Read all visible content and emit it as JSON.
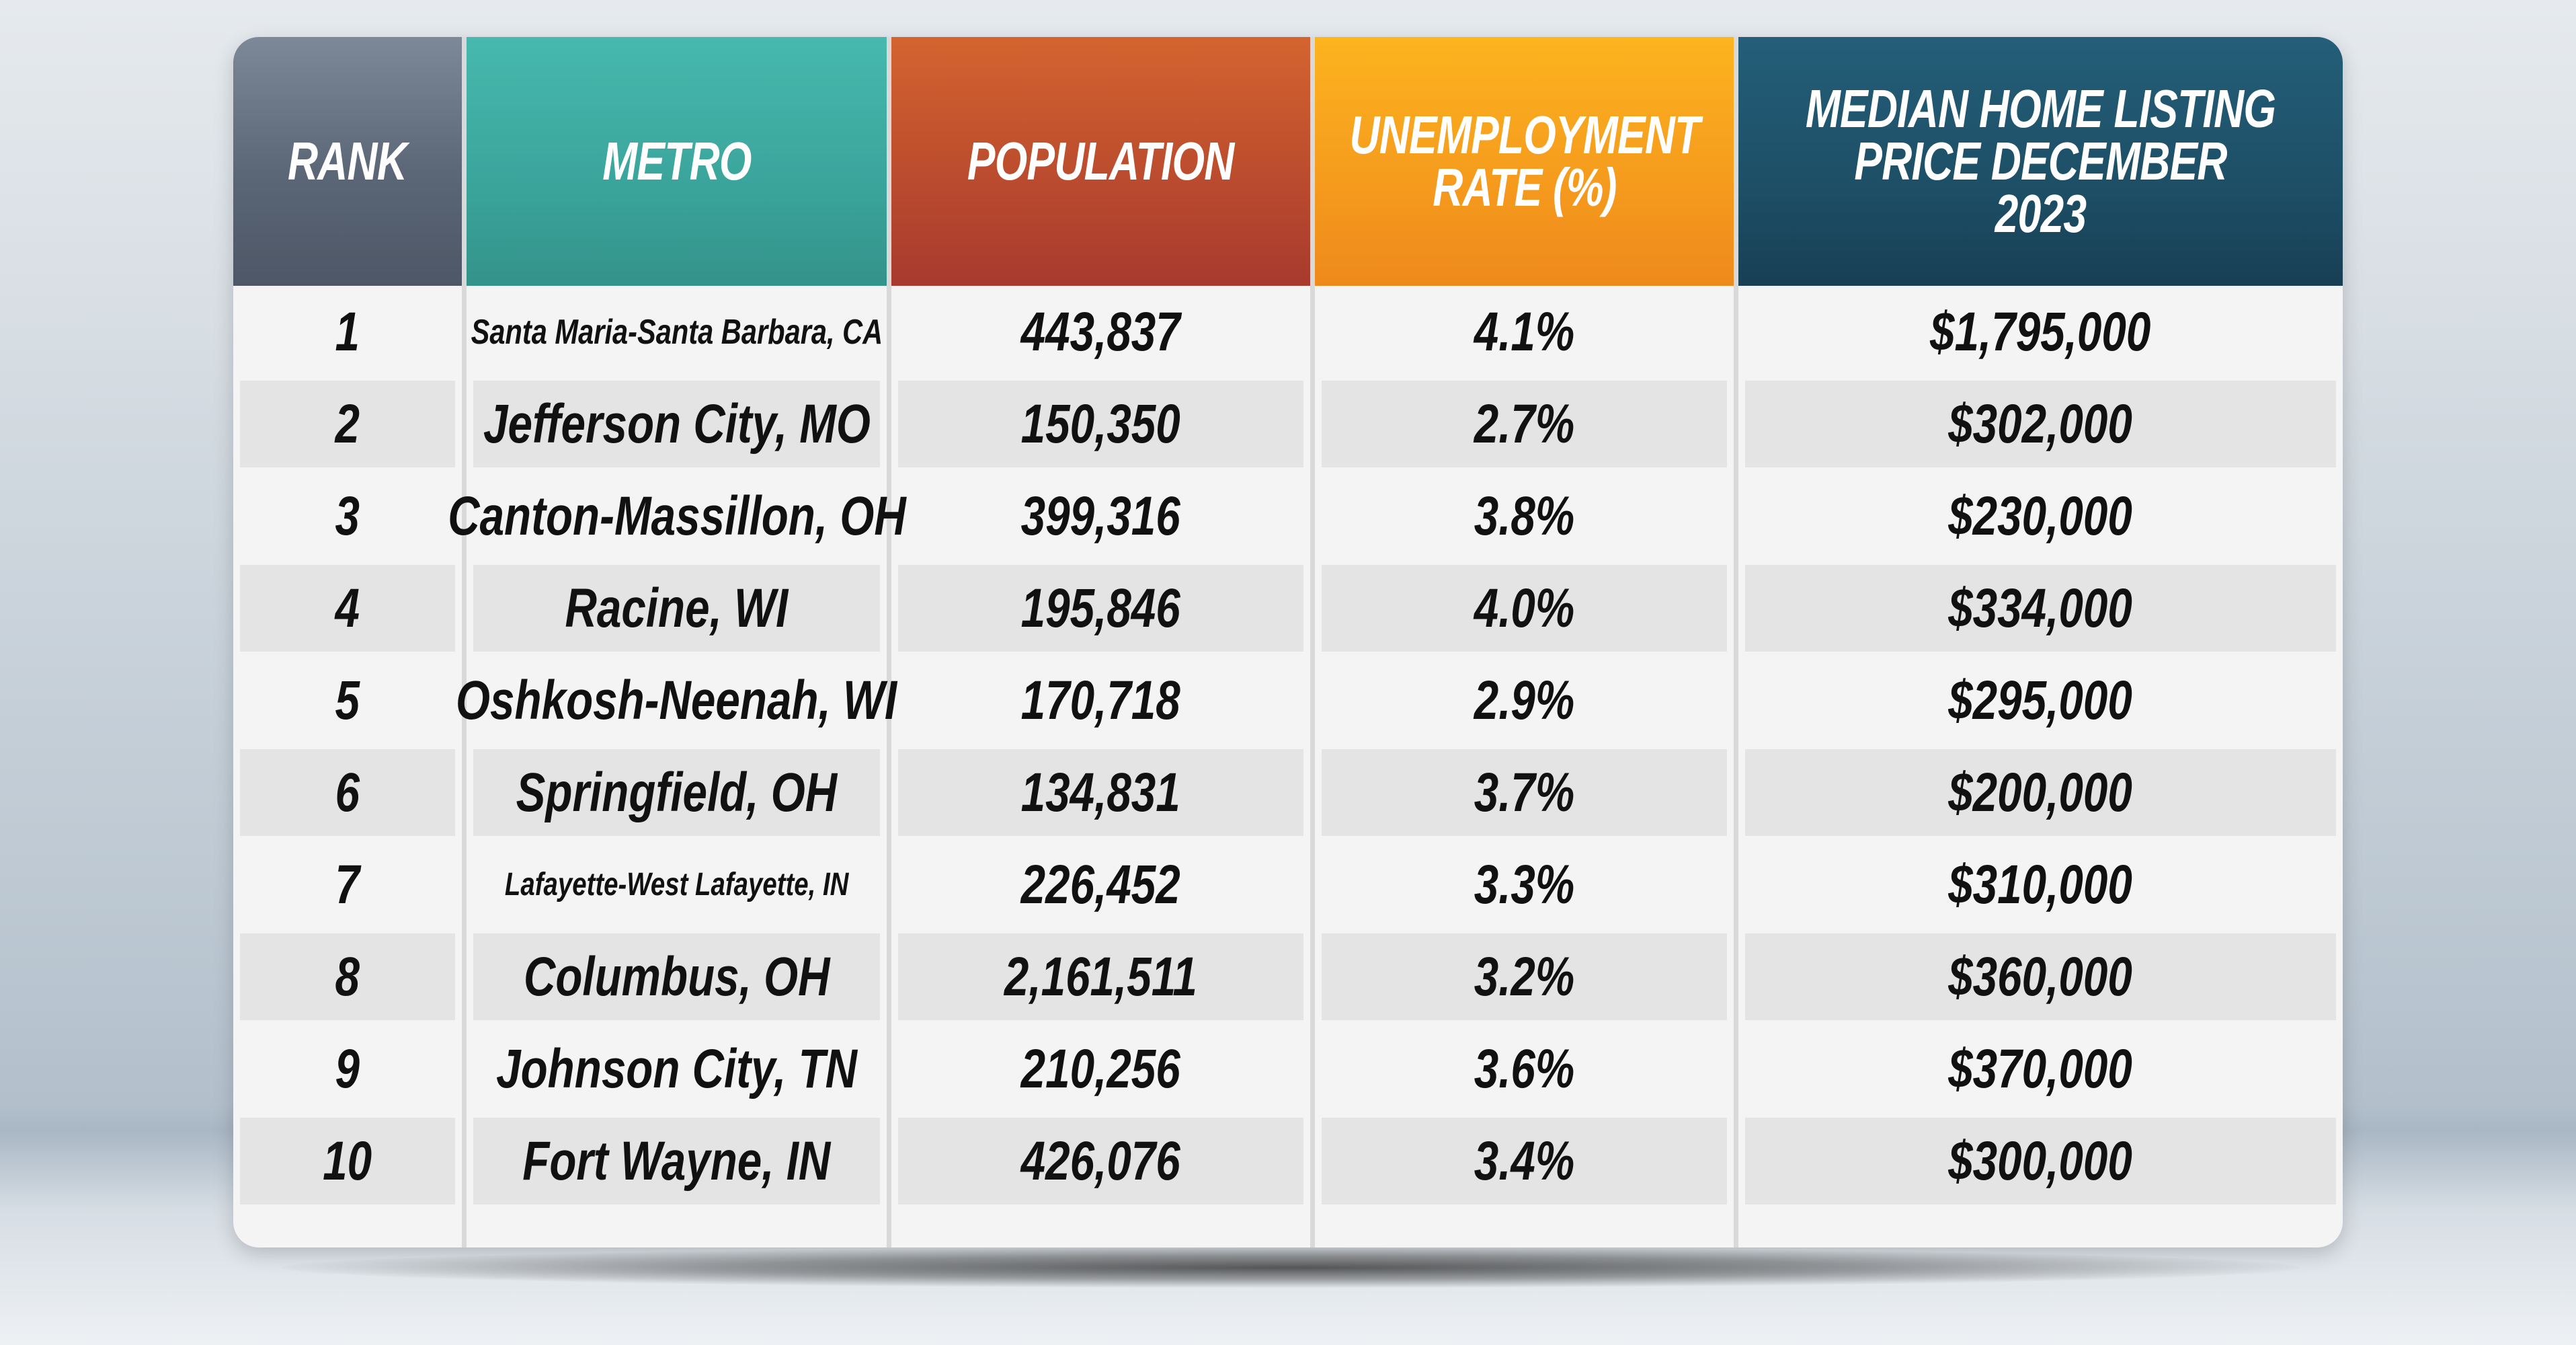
{
  "colors": {
    "rank_header": "#5b6676",
    "metro_header": "#3aa49b",
    "population_header": "#b94a2e",
    "unemployment_header": "#f59a1d",
    "price_header": "#1d4f66"
  },
  "headers": {
    "rank": "RANK",
    "metro": "METRO",
    "population": "POPULATION",
    "unemployment": "UNEMPLOYMENT\nRATE (%)",
    "price": "MEDIAN HOME LISTING\nPRICE DECEMBER 2023"
  },
  "rows": [
    {
      "rank": "1",
      "metro": "Santa Maria-Santa Barbara, CA",
      "population": "443,837",
      "unemployment": "4.1%",
      "price": "$1,795,000"
    },
    {
      "rank": "2",
      "metro": "Jefferson City, MO",
      "population": "150,350",
      "unemployment": "2.7%",
      "price": "$302,000"
    },
    {
      "rank": "3",
      "metro": "Canton-Massillon, OH",
      "population": "399,316",
      "unemployment": "3.8%",
      "price": "$230,000"
    },
    {
      "rank": "4",
      "metro": "Racine, WI",
      "population": "195,846",
      "unemployment": "4.0%",
      "price": "$334,000"
    },
    {
      "rank": "5",
      "metro": "Oshkosh-Neenah, WI",
      "population": "170,718",
      "unemployment": "2.9%",
      "price": "$295,000"
    },
    {
      "rank": "6",
      "metro": "Springfield, OH",
      "population": "134,831",
      "unemployment": "3.7%",
      "price": "$200,000"
    },
    {
      "rank": "7",
      "metro": "Lafayette-West Lafayette, IN",
      "population": "226,452",
      "unemployment": "3.3%",
      "price": "$310,000"
    },
    {
      "rank": "8",
      "metro": "Columbus, OH",
      "population": "2,161,511",
      "unemployment": "3.2%",
      "price": "$360,000"
    },
    {
      "rank": "9",
      "metro": "Johnson City, TN",
      "population": "210,256",
      "unemployment": "3.6%",
      "price": "$370,000"
    },
    {
      "rank": "10",
      "metro": "Fort Wayne, IN",
      "population": "426,076",
      "unemployment": "3.4%",
      "price": "$300,000"
    }
  ]
}
